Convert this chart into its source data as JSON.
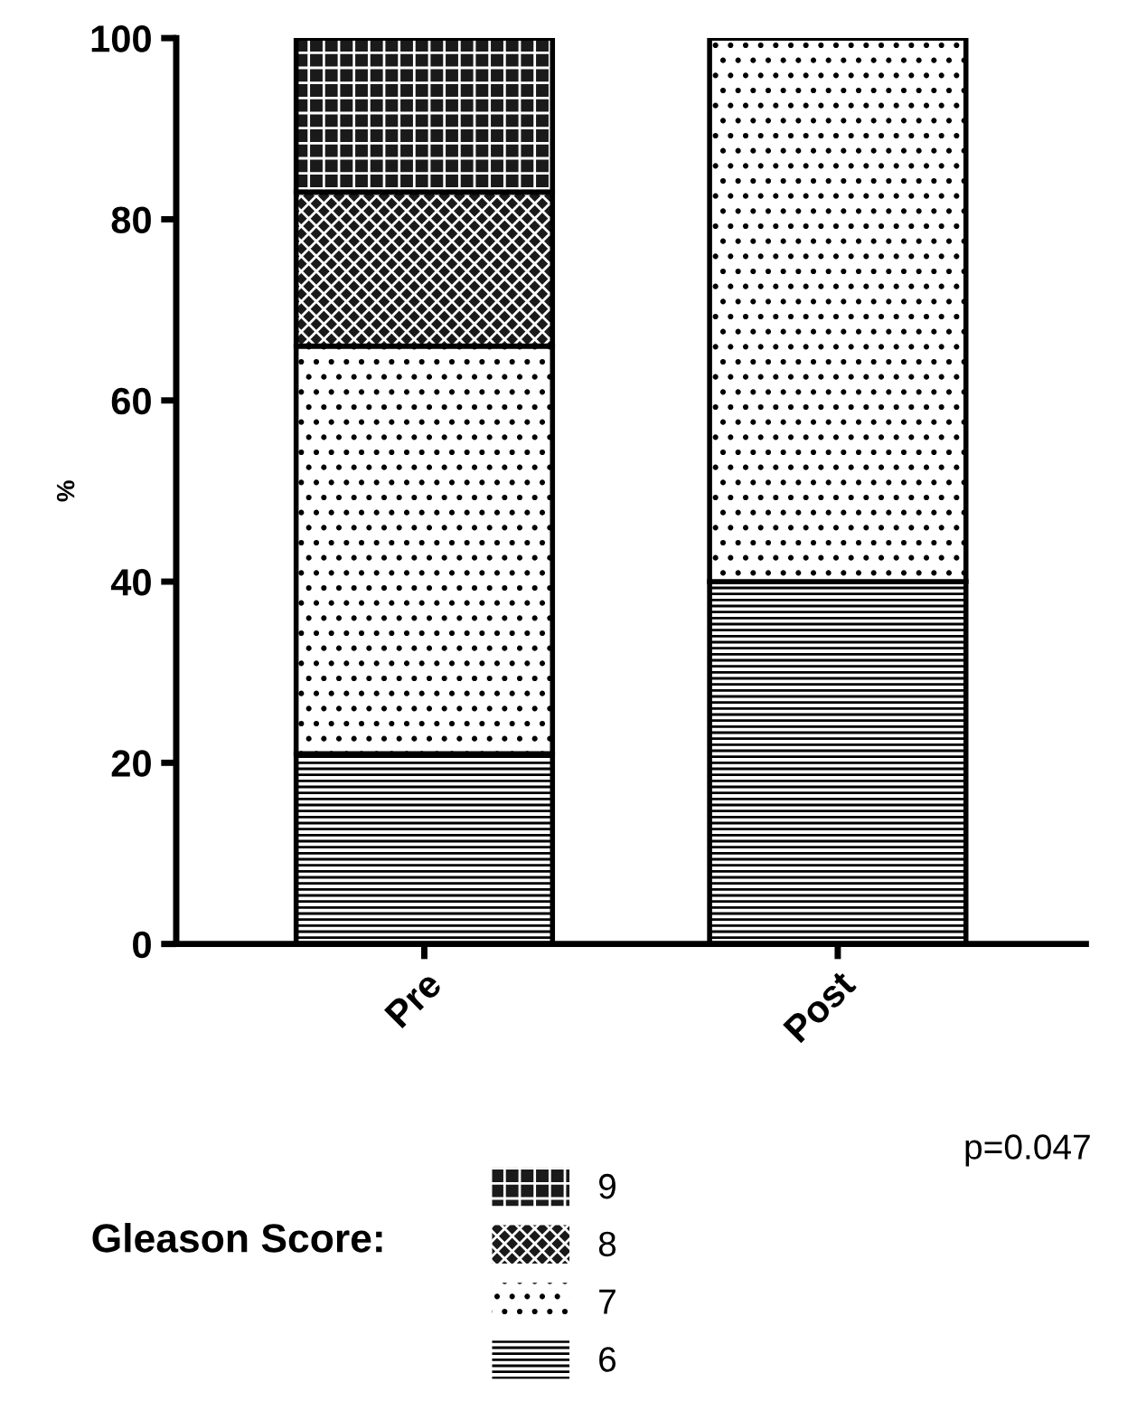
{
  "chart_data": {
    "type": "bar",
    "stacked": true,
    "categories": [
      "Pre",
      "Post"
    ],
    "series": [
      {
        "name": "6",
        "color": "#ffffff",
        "values": [
          21,
          40
        ]
      },
      {
        "name": "7",
        "color": "#ffffff",
        "values": [
          45,
          60
        ]
      },
      {
        "name": "8",
        "color": "#1a1a1a",
        "values": [
          17,
          null
        ]
      },
      {
        "name": "9",
        "color": "#1a1a1a",
        "values": [
          17,
          null
        ]
      }
    ],
    "ylabel": "%",
    "ylim": [
      0,
      100
    ],
    "yticks": [
      0,
      20,
      40,
      60,
      80,
      100
    ],
    "legend": "bottom",
    "legend_title": "Gleason Score:",
    "annotations": [
      "p=0.047"
    ],
    "grid": false
  }
}
